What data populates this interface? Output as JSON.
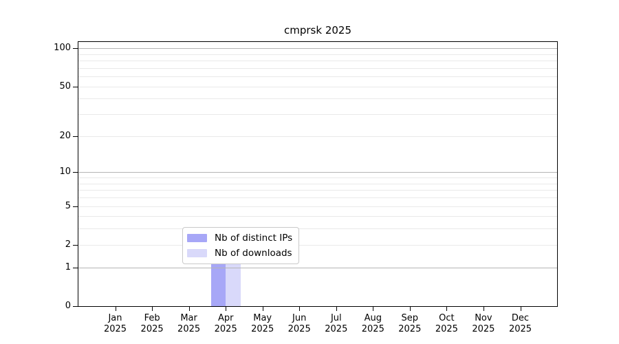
{
  "title": "cmprsk 2025",
  "chart_data": {
    "type": "bar",
    "title": "cmprsk 2025",
    "categories": [
      "Jan",
      "Feb",
      "Mar",
      "Apr",
      "May",
      "Jun",
      "Jul",
      "Aug",
      "Sep",
      "Oct",
      "Nov",
      "Dec"
    ],
    "year": "2025",
    "series": [
      {
        "name": "Nb of distinct IPs",
        "color": "#a7a7f7",
        "values": [
          0,
          0,
          0,
          2,
          0,
          0,
          0,
          0,
          0,
          0,
          0,
          0
        ]
      },
      {
        "name": "Nb of downloads",
        "color": "#d9d9fa",
        "values": [
          0,
          0,
          0,
          2,
          0,
          0,
          0,
          0,
          0,
          0,
          0,
          0
        ]
      }
    ],
    "xlabel": "",
    "ylabel": "",
    "y_axis": {
      "scale": "log1p",
      "ticks": [
        0,
        1,
        2,
        5,
        10,
        20,
        50,
        100
      ],
      "top_value": 112,
      "major_gridlines": [
        1,
        10,
        100
      ],
      "minor_gridlines": [
        2,
        3,
        4,
        5,
        6,
        7,
        8,
        9,
        20,
        30,
        40,
        50,
        60,
        70,
        80,
        90
      ]
    },
    "grid": true,
    "legend_position": "bottom-center-inside"
  },
  "legend": {
    "items": [
      {
        "label": "Nb of distinct IPs",
        "color": "#a7a7f7"
      },
      {
        "label": "Nb of downloads",
        "color": "#d9d9fa"
      }
    ]
  },
  "colors": {
    "bar_distinct_ips": "#a7a7f7",
    "bar_downloads": "#d9d9fa",
    "grid_major": "#b4b4b4",
    "grid_minor": "#e9e9e9",
    "axis_frame": "#000000",
    "legend_border": "#c9c9c9",
    "background": "#ffffff",
    "text": "#000000"
  }
}
